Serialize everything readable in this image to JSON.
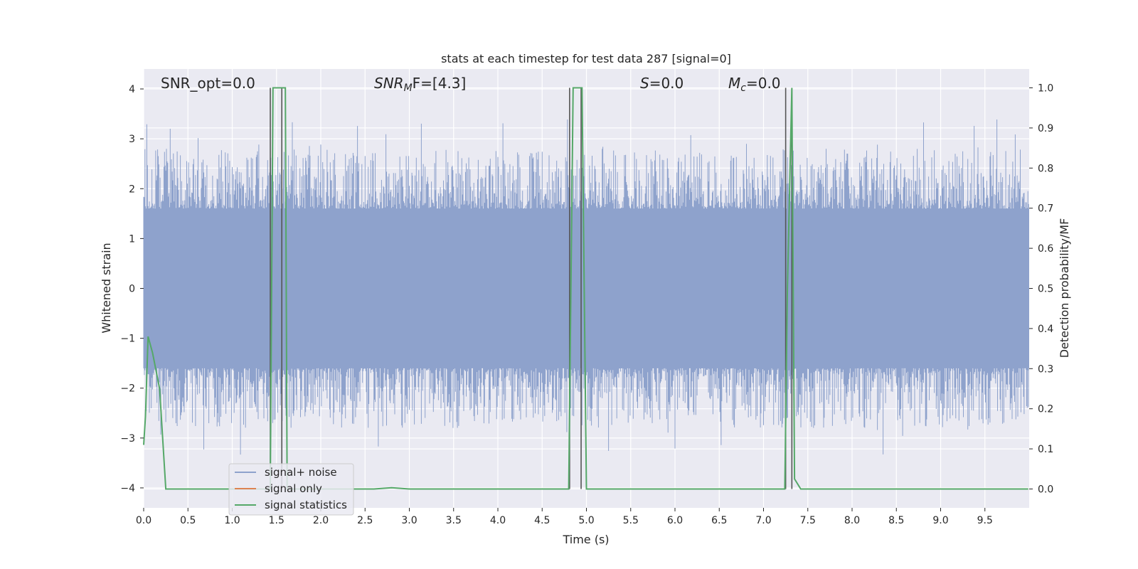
{
  "chart_data": {
    "type": "line",
    "title": "stats at each timestep for test data 287 [signal=0]",
    "xlabel": "Time (s)",
    "ylabel": "Whitened strain",
    "y2label": "Detection probability/MF",
    "xlim": [
      0.0,
      10.0
    ],
    "ylim": [
      -4.4,
      4.4
    ],
    "y2lim": [
      -0.047,
      1.047
    ],
    "x_ticks": [
      "0.0",
      "0.5",
      "1.0",
      "1.5",
      "2.0",
      "2.5",
      "3.0",
      "3.5",
      "4.0",
      "4.5",
      "5.0",
      "5.5",
      "6.0",
      "6.5",
      "7.0",
      "7.5",
      "8.0",
      "8.5",
      "9.0",
      "9.5"
    ],
    "y_ticks": [
      "4",
      "3",
      "2",
      "1",
      "0",
      "−1",
      "−2",
      "−3",
      "−4"
    ],
    "y2_ticks": [
      "1.0",
      "0.9",
      "0.8",
      "0.7",
      "0.6",
      "0.5",
      "0.4",
      "0.3",
      "0.2",
      "0.1",
      "0.0"
    ],
    "grid": true,
    "legend_position": "lower-left",
    "annotations": {
      "snr_opt": "SNR_opt=0.0",
      "snr_mf_base": "SNR",
      "snr_mf_sub": "M",
      "snr_mf_rest": "F=[4.3]",
      "s_var": "S",
      "s_rest": "=0.0",
      "mc_var": "M",
      "mc_sub": "c",
      "mc_rest": "=0.0"
    },
    "series": [
      {
        "name": "signal+ noise",
        "color": "#8ea2cc",
        "kind": "noise",
        "core_amplitude": 1.6,
        "max_amplitude": 4.0
      },
      {
        "name": "signal only",
        "color": "#dd8452",
        "kind": "flat",
        "values": []
      },
      {
        "name": "signal statistics",
        "color": "#55a868",
        "kind": "line",
        "x": [
          0.0,
          0.02,
          0.05,
          0.1,
          0.18,
          0.25,
          1.0,
          1.43,
          1.46,
          1.6,
          1.62,
          2.6,
          2.8,
          3.0,
          4.8,
          4.85,
          4.95,
          5.0,
          7.24,
          7.27,
          7.32,
          7.35,
          7.42,
          9.99
        ],
        "y": [
          0.11,
          0.18,
          0.38,
          0.34,
          0.25,
          0.0,
          0.0,
          0.0,
          1.0,
          1.0,
          0.0,
          0.0,
          0.003,
          0.0,
          0.0,
          1.0,
          1.0,
          0.0,
          0.0,
          0.5,
          1.0,
          0.025,
          0.0,
          0.0
        ]
      }
    ],
    "markers": {
      "color": "#555555",
      "pairs": [
        {
          "t_start": 1.43,
          "t_end": 1.56
        },
        {
          "t_start": 4.81,
          "t_end": 4.94
        },
        {
          "t_start": 7.25,
          "t_end": 7.32
        }
      ]
    }
  }
}
